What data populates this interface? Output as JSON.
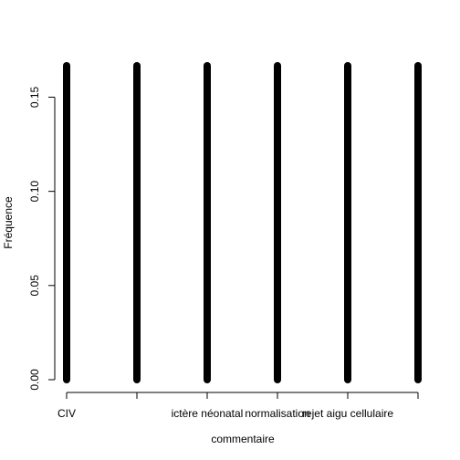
{
  "chart_data": {
    "type": "bar",
    "xlabel": "commentaire",
    "ylabel": "Fréquence",
    "ylim": [
      0,
      0.1667
    ],
    "y_ticks": [
      0.0,
      0.05,
      0.1,
      0.15
    ],
    "y_tick_labels": [
      "0.00",
      "0.05",
      "0.10",
      "0.15"
    ],
    "categories": [
      "CIV",
      "",
      "ictère néonatal",
      "normalisation",
      "rejet aigu cellulaire",
      ""
    ],
    "values": [
      0.1667,
      0.1667,
      0.1667,
      0.1667,
      0.1667,
      0.1667
    ],
    "grid": false,
    "legend": "none"
  }
}
